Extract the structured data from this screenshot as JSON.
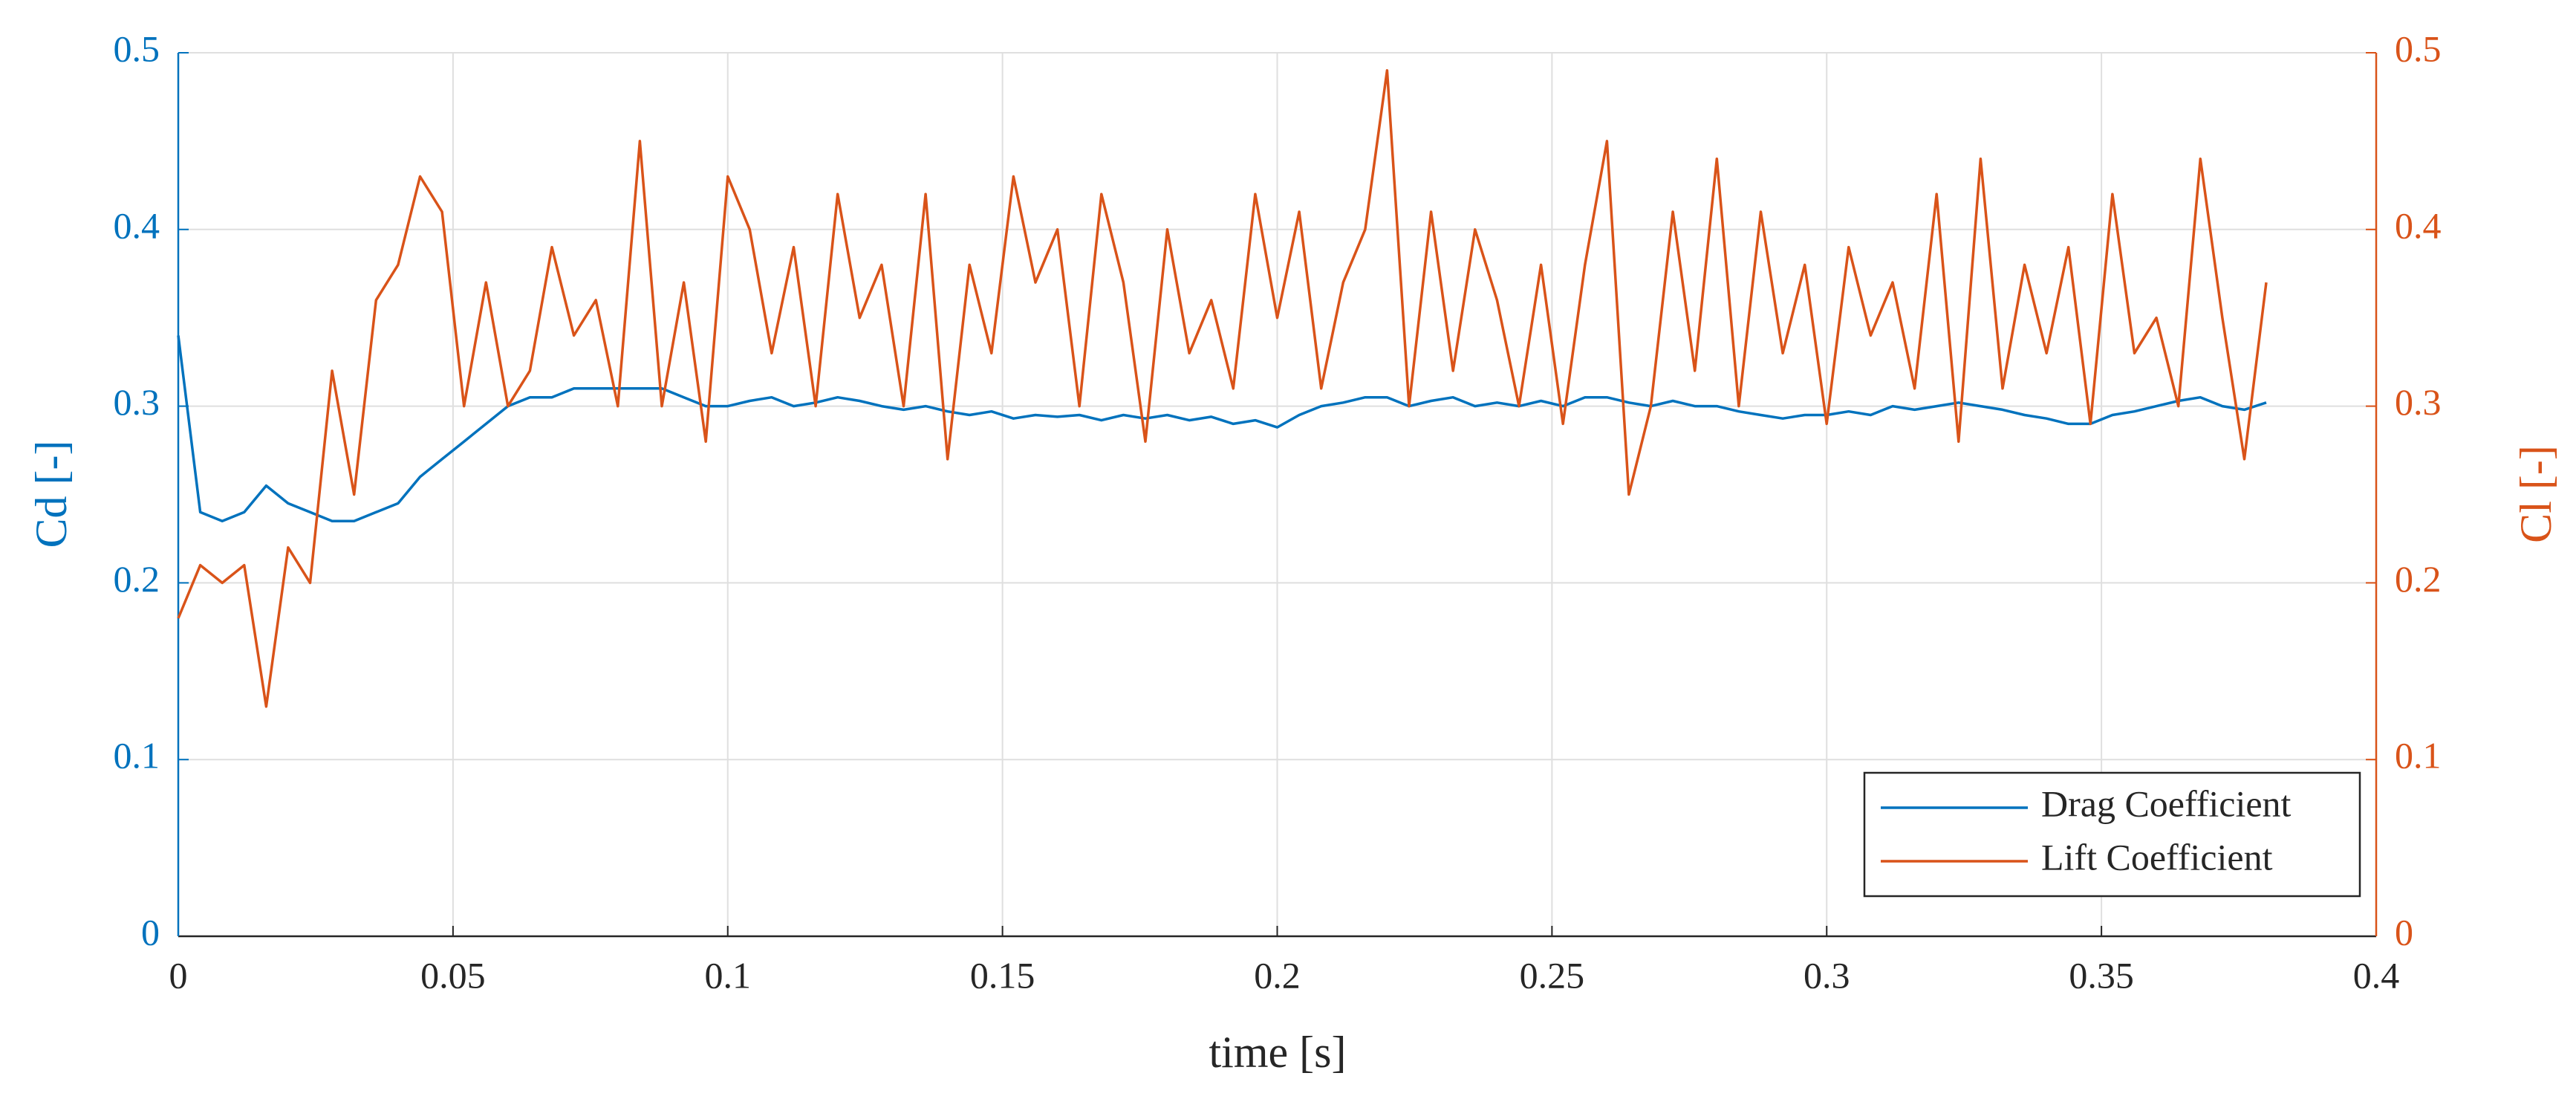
{
  "chart_data": {
    "type": "line",
    "xlabel": "time [s]",
    "ylabel": "Cd [-]",
    "y2label": "Cl [-]",
    "x": [
      0,
      0.004,
      0.008,
      0.012,
      0.016,
      0.02,
      0.024,
      0.028,
      0.032,
      0.036,
      0.04,
      0.044,
      0.048,
      0.052,
      0.056,
      0.06,
      0.064,
      0.068,
      0.072,
      0.076,
      0.08,
      0.084,
      0.088,
      0.092,
      0.096,
      0.1,
      0.104,
      0.108,
      0.112,
      0.116,
      0.12,
      0.124,
      0.128,
      0.132,
      0.136,
      0.14,
      0.144,
      0.148,
      0.152,
      0.156,
      0.16,
      0.164,
      0.168,
      0.172,
      0.176,
      0.18,
      0.184,
      0.188,
      0.192,
      0.196,
      0.2,
      0.204,
      0.208,
      0.212,
      0.216,
      0.22,
      0.224,
      0.228,
      0.232,
      0.236,
      0.24,
      0.244,
      0.248,
      0.252,
      0.256,
      0.26,
      0.264,
      0.268,
      0.272,
      0.276,
      0.28,
      0.284,
      0.288,
      0.292,
      0.296,
      0.3,
      0.304,
      0.308,
      0.312,
      0.316,
      0.32,
      0.324,
      0.328,
      0.332,
      0.336,
      0.34,
      0.344,
      0.348,
      0.352,
      0.356,
      0.36,
      0.364,
      0.368,
      0.372,
      0.376,
      0.38
    ],
    "series": [
      {
        "name": "Drag Coefficient",
        "color": "#0072bd",
        "axis": "y",
        "values": [
          0.34,
          0.24,
          0.235,
          0.24,
          0.255,
          0.245,
          0.24,
          0.235,
          0.235,
          0.24,
          0.245,
          0.26,
          0.27,
          0.28,
          0.29,
          0.3,
          0.305,
          0.305,
          0.31,
          0.31,
          0.31,
          0.31,
          0.31,
          0.305,
          0.3,
          0.3,
          0.303,
          0.305,
          0.3,
          0.302,
          0.305,
          0.303,
          0.3,
          0.298,
          0.3,
          0.297,
          0.295,
          0.297,
          0.293,
          0.295,
          0.294,
          0.295,
          0.292,
          0.295,
          0.293,
          0.295,
          0.292,
          0.294,
          0.29,
          0.292,
          0.288,
          0.295,
          0.3,
          0.302,
          0.305,
          0.305,
          0.3,
          0.303,
          0.305,
          0.3,
          0.302,
          0.3,
          0.303,
          0.3,
          0.305,
          0.305,
          0.302,
          0.3,
          0.303,
          0.3,
          0.3,
          0.297,
          0.295,
          0.293,
          0.295,
          0.295,
          0.297,
          0.295,
          0.3,
          0.298,
          0.3,
          0.302,
          0.3,
          0.298,
          0.295,
          0.293,
          0.29,
          0.29,
          0.295,
          0.297,
          0.3,
          0.303,
          0.305,
          0.3,
          0.298,
          0.302
        ]
      },
      {
        "name": "Lift Coefficient",
        "color": "#d95319",
        "axis": "y2",
        "values": [
          0.18,
          0.21,
          0.2,
          0.21,
          0.13,
          0.22,
          0.2,
          0.32,
          0.25,
          0.36,
          0.38,
          0.43,
          0.41,
          0.3,
          0.37,
          0.3,
          0.32,
          0.39,
          0.34,
          0.36,
          0.3,
          0.45,
          0.3,
          0.37,
          0.28,
          0.43,
          0.4,
          0.33,
          0.39,
          0.3,
          0.42,
          0.35,
          0.38,
          0.3,
          0.42,
          0.27,
          0.38,
          0.33,
          0.43,
          0.37,
          0.4,
          0.3,
          0.42,
          0.37,
          0.28,
          0.4,
          0.33,
          0.36,
          0.31,
          0.42,
          0.35,
          0.41,
          0.31,
          0.37,
          0.4,
          0.49,
          0.3,
          0.41,
          0.32,
          0.4,
          0.36,
          0.3,
          0.38,
          0.29,
          0.38,
          0.45,
          0.25,
          0.3,
          0.41,
          0.32,
          0.44,
          0.3,
          0.41,
          0.33,
          0.38,
          0.29,
          0.39,
          0.34,
          0.37,
          0.31,
          0.42,
          0.28,
          0.44,
          0.31,
          0.38,
          0.33,
          0.39,
          0.29,
          0.42,
          0.33,
          0.35,
          0.3,
          0.44,
          0.35,
          0.27,
          0.37
        ]
      }
    ],
    "xlim": [
      0,
      0.4
    ],
    "xticks": [
      0,
      0.05,
      0.1,
      0.15,
      0.2,
      0.25,
      0.3,
      0.35,
      0.4
    ],
    "ylim": [
      0,
      0.5
    ],
    "yticks": [
      0,
      0.1,
      0.2,
      0.3,
      0.4,
      0.5
    ],
    "y2lim": [
      0,
      0.5
    ],
    "y2ticks": [
      0,
      0.1,
      0.2,
      0.3,
      0.4,
      0.5
    ],
    "grid": true,
    "legend": "lower right"
  }
}
